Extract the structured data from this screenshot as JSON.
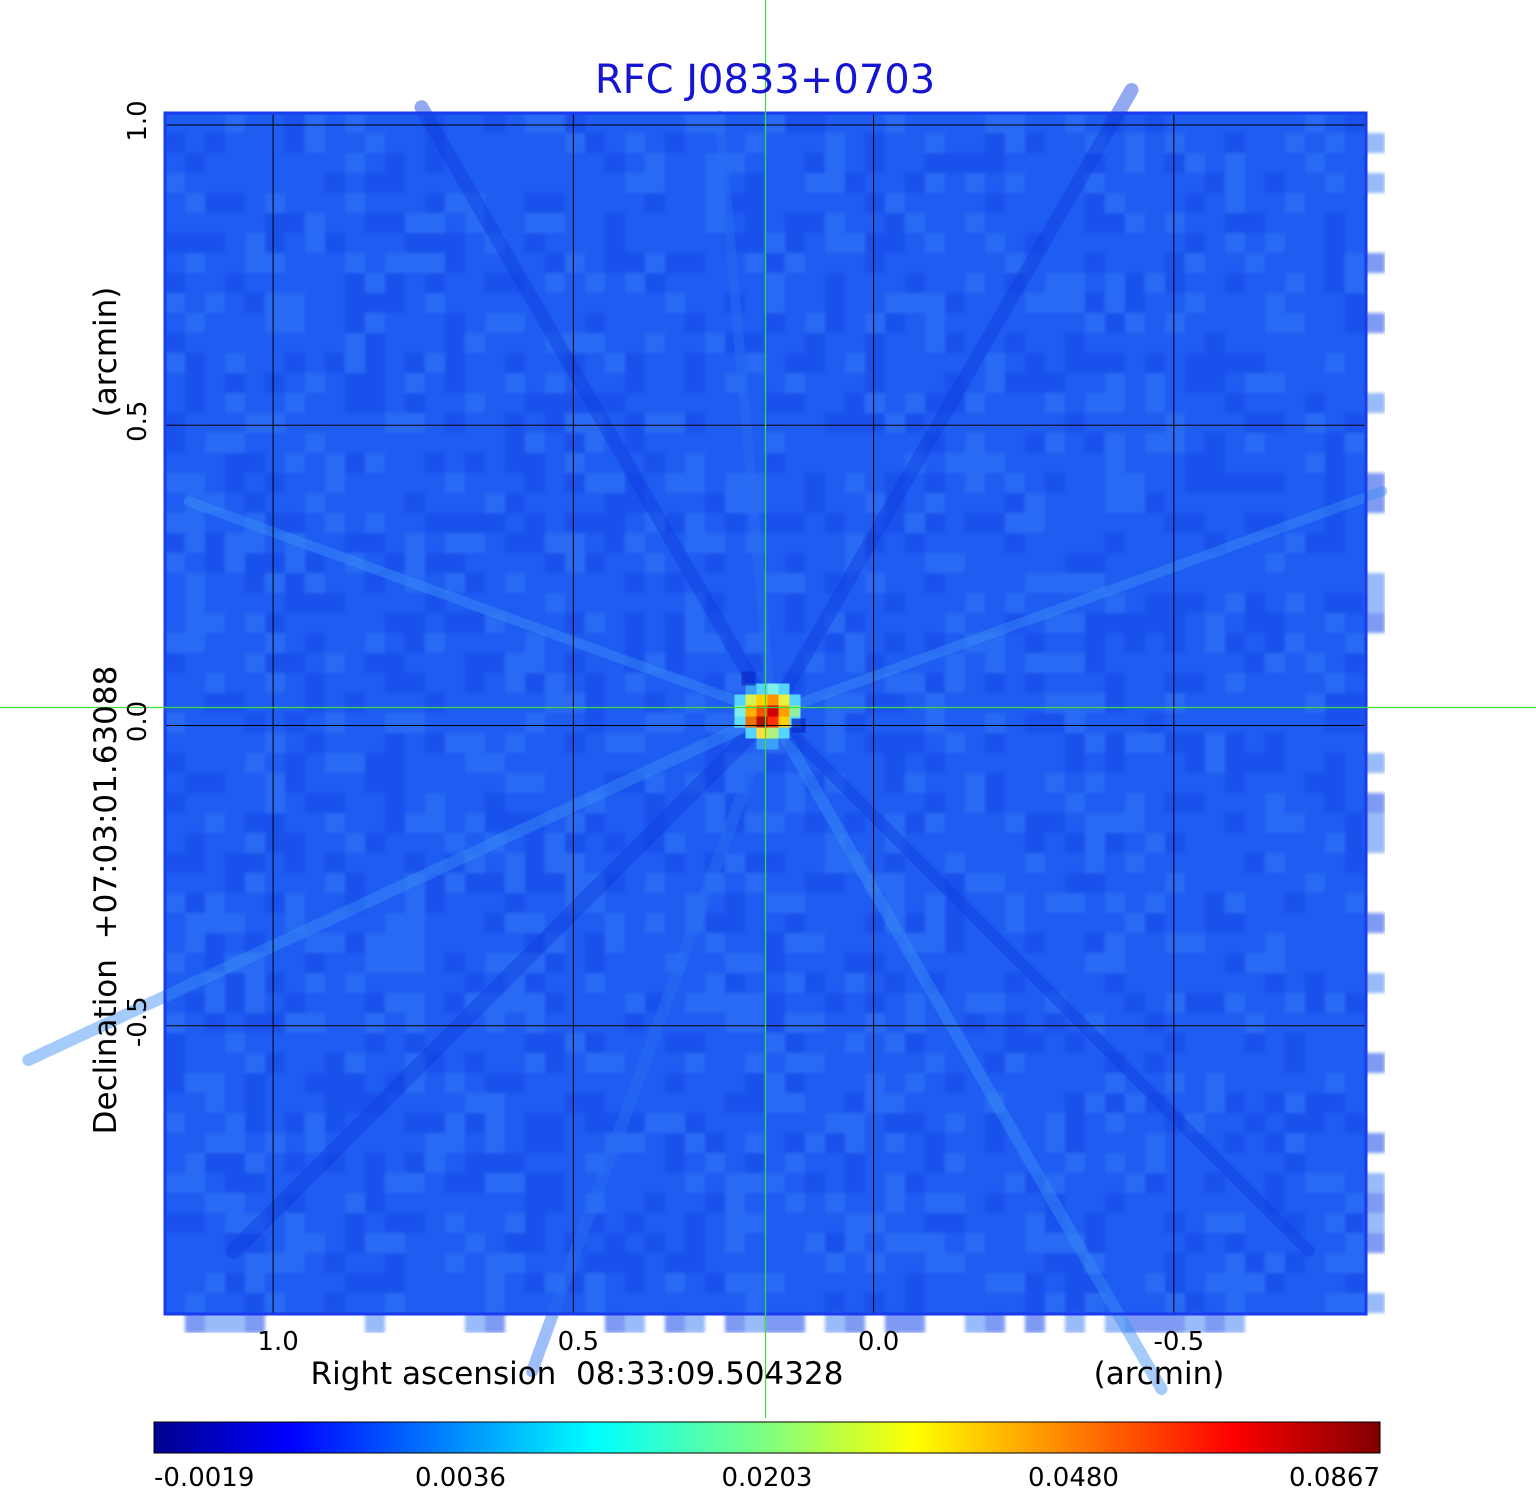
{
  "chart_data": {
    "type": "heatmap",
    "title": "RFC J0833+0703",
    "xlabel": "Right ascension  08:33:09.504328",
    "xunit": "(arcmin)",
    "ylabel": "Declination  +07:03:01.63088",
    "yunit": "(arcmin)",
    "xlim": [
      1.18,
      -0.82
    ],
    "ylim": [
      -0.98,
      1.02
    ],
    "x_ticks": [
      1.0,
      0.5,
      0.0,
      -0.5
    ],
    "x_tick_labels": [
      "1.0",
      "0.5",
      "0.0",
      "-0.5"
    ],
    "y_ticks": [
      1.0,
      0.5,
      0.0,
      -0.5
    ],
    "y_tick_labels": [
      "1.0",
      "0.5",
      "0.0",
      "-0.5"
    ],
    "grid": true,
    "colormap": "jet",
    "colorbar_ticks": [
      -0.0019,
      0.0036,
      0.0203,
      0.048,
      0.0867
    ],
    "colorbar_tick_labels": [
      "-0.0019",
      "0.0036",
      "0.0203",
      "0.0480",
      "0.0867"
    ],
    "peak": {
      "x": 0.17,
      "y": 0.02,
      "value": 0.0867
    },
    "crosshair": {
      "x": 0.18,
      "y": 0.03
    },
    "colors": {
      "title": "#1414d2",
      "frame": "#1a3cf0",
      "crosshair": "#3cdc3c",
      "grid": "#000000"
    }
  }
}
